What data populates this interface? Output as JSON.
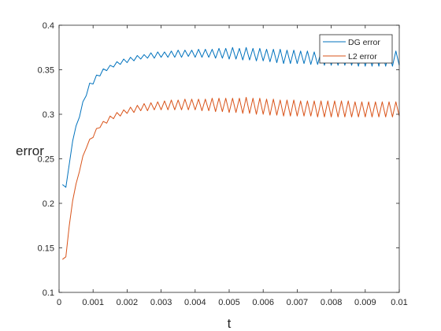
{
  "chart_data": {
    "type": "line",
    "title": "",
    "xlabel": "t",
    "ylabel": "error",
    "xlim": [
      0,
      0.01
    ],
    "ylim": [
      0.1,
      0.4
    ],
    "x_ticks": [
      "0",
      "0.001",
      "0.002",
      "0.003",
      "0.004",
      "0.005",
      "0.006",
      "0.007",
      "0.008",
      "0.009",
      "0.01"
    ],
    "y_ticks": [
      "0.1",
      "0.15",
      "0.2",
      "0.25",
      "0.3",
      "0.35",
      "0.4"
    ],
    "grid": false,
    "legend_position": "top-right",
    "series": [
      {
        "name": "DG error",
        "color": "#0072bd",
        "x": [
          0.0001,
          0.0002,
          0.0003,
          0.0004,
          0.0005,
          0.0006,
          0.0007,
          0.0008,
          0.0009,
          0.001,
          0.0011,
          0.0012,
          0.0013,
          0.0014,
          0.0015,
          0.0016,
          0.0017,
          0.0018,
          0.0019,
          0.002,
          0.0021,
          0.0022,
          0.0023,
          0.0024,
          0.0025,
          0.0026,
          0.0027,
          0.0028,
          0.0029,
          0.003,
          0.0031,
          0.0032,
          0.0033,
          0.0034,
          0.0035,
          0.0036,
          0.0037,
          0.0038,
          0.0039,
          0.004,
          0.0041,
          0.0042,
          0.0043,
          0.0044,
          0.0045,
          0.0046,
          0.0047,
          0.0048,
          0.0049,
          0.005,
          0.0051,
          0.0052,
          0.0053,
          0.0054,
          0.0055,
          0.0056,
          0.0057,
          0.0058,
          0.0059,
          0.006,
          0.0061,
          0.0062,
          0.0063,
          0.0064,
          0.0065,
          0.0066,
          0.0067,
          0.0068,
          0.0069,
          0.007,
          0.0071,
          0.0072,
          0.0073,
          0.0074,
          0.0075,
          0.0076,
          0.0077,
          0.0078,
          0.0079,
          0.008,
          0.0081,
          0.0082,
          0.0083,
          0.0084,
          0.0085,
          0.0086,
          0.0087,
          0.0088,
          0.0089,
          0.009,
          0.0091,
          0.0092,
          0.0093,
          0.0094,
          0.0095,
          0.0096,
          0.0097,
          0.0098,
          0.0099,
          0.01
        ],
        "y": [
          0.221,
          0.218,
          0.244,
          0.27,
          0.287,
          0.297,
          0.314,
          0.321,
          0.335,
          0.334,
          0.344,
          0.343,
          0.351,
          0.349,
          0.355,
          0.353,
          0.359,
          0.356,
          0.362,
          0.358,
          0.364,
          0.36,
          0.366,
          0.362,
          0.367,
          0.363,
          0.369,
          0.363,
          0.37,
          0.364,
          0.37,
          0.364,
          0.371,
          0.364,
          0.372,
          0.364,
          0.372,
          0.365,
          0.372,
          0.364,
          0.373,
          0.364,
          0.373,
          0.364,
          0.373,
          0.363,
          0.374,
          0.363,
          0.374,
          0.362,
          0.375,
          0.362,
          0.374,
          0.361,
          0.375,
          0.361,
          0.374,
          0.36,
          0.374,
          0.36,
          0.373,
          0.359,
          0.373,
          0.358,
          0.373,
          0.357,
          0.372,
          0.357,
          0.372,
          0.357,
          0.371,
          0.357,
          0.371,
          0.356,
          0.37,
          0.356,
          0.37,
          0.355,
          0.37,
          0.355,
          0.369,
          0.355,
          0.369,
          0.355,
          0.369,
          0.355,
          0.369,
          0.354,
          0.369,
          0.354,
          0.369,
          0.354,
          0.37,
          0.354,
          0.37,
          0.354,
          0.37,
          0.354,
          0.371,
          0.355
        ]
      },
      {
        "name": "L2 error",
        "color": "#d95319",
        "x": [
          0.0001,
          0.0002,
          0.0003,
          0.0004,
          0.0005,
          0.0006,
          0.0007,
          0.0008,
          0.0009,
          0.001,
          0.0011,
          0.0012,
          0.0013,
          0.0014,
          0.0015,
          0.0016,
          0.0017,
          0.0018,
          0.0019,
          0.002,
          0.0021,
          0.0022,
          0.0023,
          0.0024,
          0.0025,
          0.0026,
          0.0027,
          0.0028,
          0.0029,
          0.003,
          0.0031,
          0.0032,
          0.0033,
          0.0034,
          0.0035,
          0.0036,
          0.0037,
          0.0038,
          0.0039,
          0.004,
          0.0041,
          0.0042,
          0.0043,
          0.0044,
          0.0045,
          0.0046,
          0.0047,
          0.0048,
          0.0049,
          0.005,
          0.0051,
          0.0052,
          0.0053,
          0.0054,
          0.0055,
          0.0056,
          0.0057,
          0.0058,
          0.0059,
          0.006,
          0.0061,
          0.0062,
          0.0063,
          0.0064,
          0.0065,
          0.0066,
          0.0067,
          0.0068,
          0.0069,
          0.007,
          0.0071,
          0.0072,
          0.0073,
          0.0074,
          0.0075,
          0.0076,
          0.0077,
          0.0078,
          0.0079,
          0.008,
          0.0081,
          0.0082,
          0.0083,
          0.0084,
          0.0085,
          0.0086,
          0.0087,
          0.0088,
          0.0089,
          0.009,
          0.0091,
          0.0092,
          0.0093,
          0.0094,
          0.0095,
          0.0096,
          0.0097,
          0.0098,
          0.0099,
          0.01
        ],
        "y": [
          0.137,
          0.14,
          0.175,
          0.203,
          0.222,
          0.236,
          0.253,
          0.262,
          0.272,
          0.274,
          0.284,
          0.285,
          0.292,
          0.29,
          0.298,
          0.295,
          0.302,
          0.298,
          0.305,
          0.301,
          0.308,
          0.302,
          0.31,
          0.304,
          0.312,
          0.304,
          0.313,
          0.305,
          0.314,
          0.305,
          0.315,
          0.305,
          0.316,
          0.305,
          0.316,
          0.305,
          0.317,
          0.305,
          0.317,
          0.305,
          0.317,
          0.304,
          0.317,
          0.304,
          0.318,
          0.303,
          0.318,
          0.303,
          0.318,
          0.302,
          0.318,
          0.302,
          0.318,
          0.301,
          0.319,
          0.301,
          0.318,
          0.3,
          0.318,
          0.3,
          0.317,
          0.299,
          0.317,
          0.299,
          0.316,
          0.298,
          0.316,
          0.298,
          0.316,
          0.298,
          0.315,
          0.298,
          0.315,
          0.298,
          0.315,
          0.297,
          0.315,
          0.297,
          0.315,
          0.297,
          0.315,
          0.297,
          0.315,
          0.297,
          0.315,
          0.297,
          0.314,
          0.297,
          0.314,
          0.297,
          0.314,
          0.297,
          0.314,
          0.297,
          0.314,
          0.297,
          0.314,
          0.297,
          0.314,
          0.298
        ]
      }
    ]
  }
}
